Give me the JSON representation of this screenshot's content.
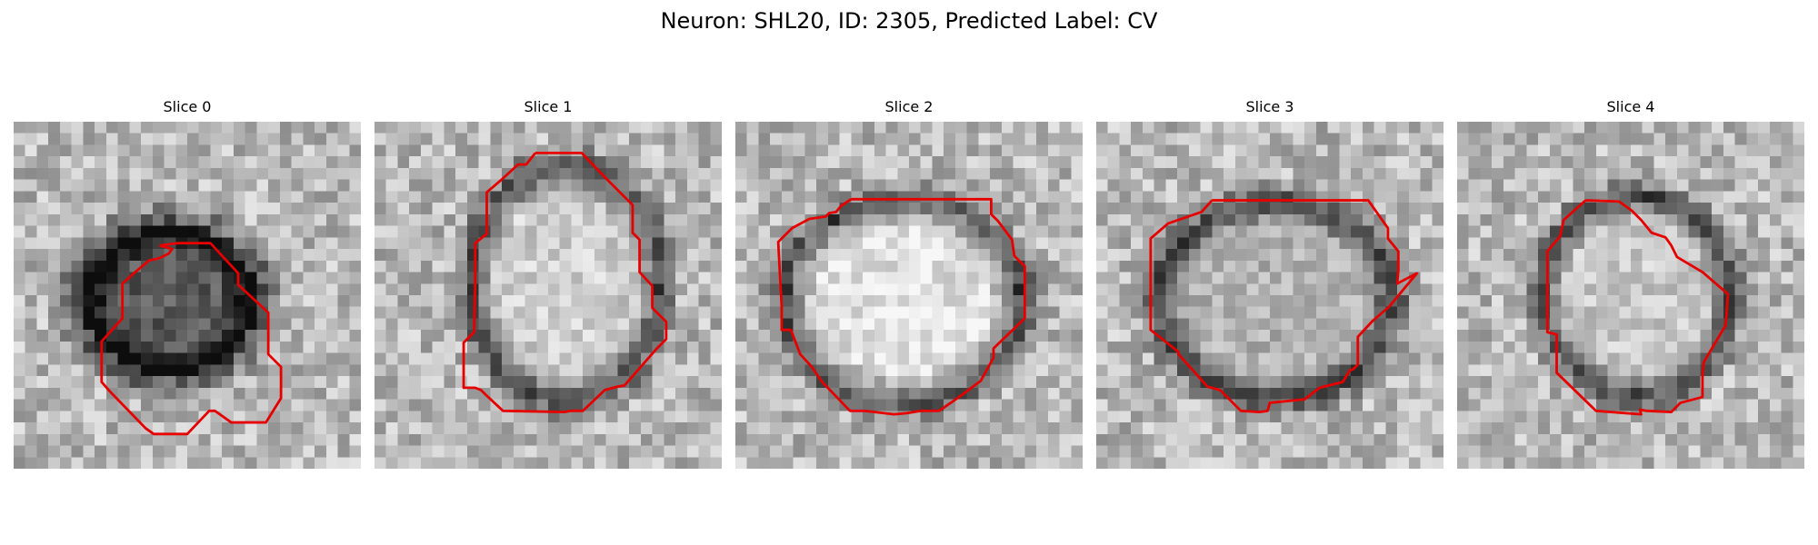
{
  "figure": {
    "title": "Neuron: SHL20, ID: 2305, Predicted Label: CV"
  },
  "panels": [
    {
      "title": "Slice 0"
    },
    {
      "title": "Slice 1"
    },
    {
      "title": "Slice 2"
    },
    {
      "title": "Slice 3"
    },
    {
      "title": "Slice 4"
    }
  ],
  "colors": {
    "contour": "#e60000",
    "background": "#ffffff"
  },
  "colormap": "grayscale"
}
